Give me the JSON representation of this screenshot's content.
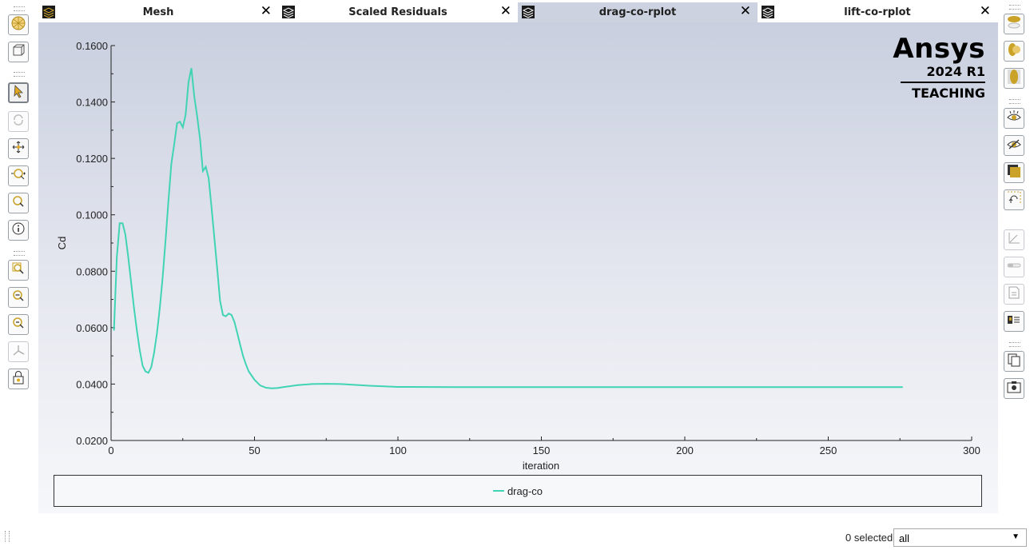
{
  "tabs": [
    {
      "label": "Mesh",
      "close": "✕"
    },
    {
      "label": "Scaled Residuals",
      "close": "✕"
    },
    {
      "label": "drag-co-rplot",
      "close": "✕"
    },
    {
      "label": "lift-co-rplot",
      "close": "✕"
    }
  ],
  "active_tab": 2,
  "logo": {
    "brand": "Ansys",
    "version": "2024 R1",
    "edition": "TEACHING"
  },
  "colors": {
    "series": "#40d4b4",
    "accent": "#c9a227",
    "active_tab": "#cdd2e0"
  },
  "chart_data": {
    "type": "line",
    "xlabel": "iteration",
    "ylabel": "Cd",
    "xlim": [
      0,
      300
    ],
    "ylim": [
      0.02,
      0.16
    ],
    "x_ticks": [
      0,
      50,
      100,
      150,
      200,
      250,
      300
    ],
    "x_tick_labels": [
      "0",
      "50",
      "100",
      "150",
      "200",
      "250",
      "300"
    ],
    "y_ticks": [
      0.02,
      0.04,
      0.06,
      0.08,
      0.1,
      0.12,
      0.14,
      0.16
    ],
    "y_tick_labels": [
      "0.0200",
      "0.0400",
      "0.0600",
      "0.0800",
      "0.1000",
      "0.1200",
      "0.1400",
      "0.1600"
    ],
    "grid": false,
    "legend_position": "bottom",
    "series": [
      {
        "name": "drag-co",
        "x": [
          1,
          2,
          3,
          4,
          5,
          6,
          7,
          8,
          9,
          10,
          11,
          12,
          13,
          14,
          15,
          16,
          17,
          18,
          19,
          20,
          21,
          22,
          23,
          24,
          25,
          26,
          27,
          28,
          29,
          30,
          31,
          32,
          33,
          34,
          35,
          36,
          37,
          38,
          39,
          40,
          41,
          42,
          43,
          44,
          45,
          46,
          47,
          48,
          50,
          52,
          54,
          56,
          58,
          60,
          65,
          70,
          75,
          80,
          90,
          100,
          120,
          150,
          200,
          250,
          276
        ],
        "y": [
          0.059,
          0.085,
          0.097,
          0.097,
          0.093,
          0.085,
          0.076,
          0.067,
          0.059,
          0.052,
          0.0465,
          0.0445,
          0.044,
          0.046,
          0.051,
          0.058,
          0.067,
          0.078,
          0.091,
          0.105,
          0.118,
          0.125,
          0.1325,
          0.133,
          0.131,
          0.1355,
          0.147,
          0.152,
          0.142,
          0.135,
          0.127,
          0.1155,
          0.117,
          0.113,
          0.103,
          0.092,
          0.081,
          0.0695,
          0.0645,
          0.064,
          0.065,
          0.0645,
          0.062,
          0.058,
          0.054,
          0.05,
          0.047,
          0.0445,
          0.0415,
          0.0395,
          0.0387,
          0.0385,
          0.0386,
          0.0389,
          0.0396,
          0.04,
          0.0401,
          0.04,
          0.0394,
          0.039,
          0.0389,
          0.0389,
          0.0389,
          0.0389,
          0.0389
        ]
      }
    ]
  },
  "left_toolbar": [
    {
      "icon": "mesh-sphere-icon"
    },
    {
      "icon": "model-view-icon"
    },
    {
      "icon": "select-pointer-icon",
      "selected": true
    },
    {
      "icon": "rotate-icon",
      "disabled": true
    },
    {
      "icon": "pan-icon"
    },
    {
      "icon": "zoom-in-out-icon"
    },
    {
      "icon": "zoom-icon"
    },
    {
      "icon": "probe-info-icon"
    },
    {
      "icon": "zoom-box-icon"
    },
    {
      "icon": "zoom-out-box-icon"
    },
    {
      "icon": "zoom-to-fit-icon"
    },
    {
      "icon": "axes-icon",
      "disabled": true
    },
    {
      "icon": "lock-view-icon"
    }
  ],
  "right_toolbar": [
    {
      "icon": "view-front-icon"
    },
    {
      "icon": "view-iso-icon"
    },
    {
      "icon": "view-top-icon"
    },
    {
      "icon": "show-icon"
    },
    {
      "icon": "hide-icon"
    },
    {
      "icon": "color-icon"
    },
    {
      "icon": "undo-view-icon"
    },
    {
      "icon": "plot-axes-icon",
      "disabled": true
    },
    {
      "icon": "slider-icon",
      "disabled": true
    },
    {
      "icon": "annotate-icon",
      "disabled": true
    },
    {
      "icon": "legend-icon"
    },
    {
      "icon": "copy-icon"
    },
    {
      "icon": "screenshot-icon"
    }
  ],
  "status": {
    "selected": "0 selected",
    "filter_value": "all"
  }
}
